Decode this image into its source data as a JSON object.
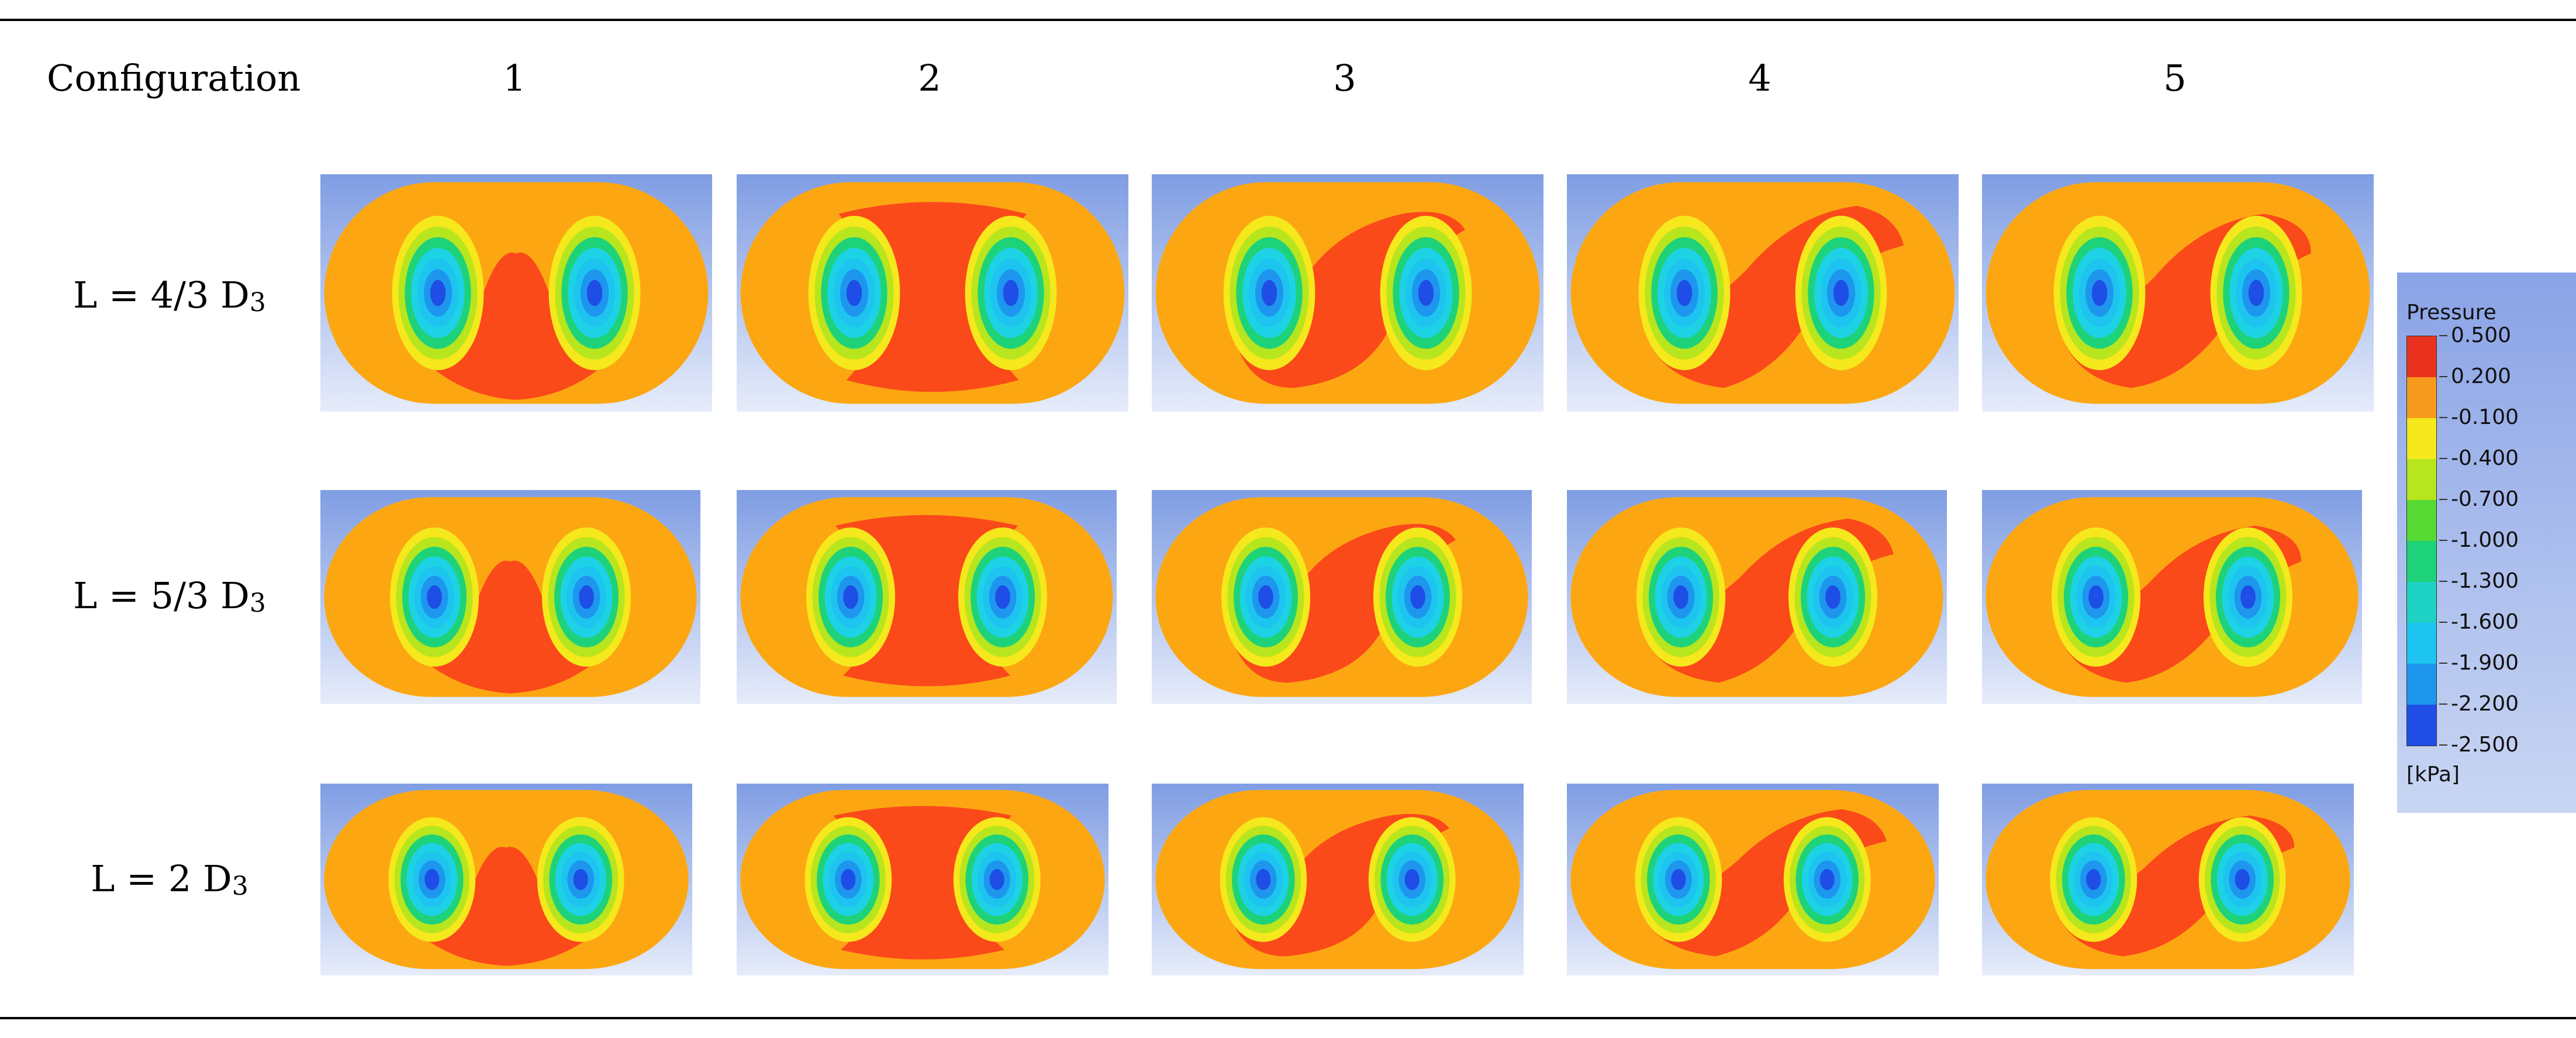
{
  "header": {
    "row_title": "Configuration",
    "columns": [
      "1",
      "2",
      "3",
      "4",
      "5"
    ]
  },
  "rows": [
    {
      "label": "L = 4/3 D",
      "sub": "3"
    },
    {
      "label": "L = 5/3 D",
      "sub": "3"
    },
    {
      "label": "L = 2 D",
      "sub": "3"
    }
  ],
  "legend": {
    "title": "Pressure",
    "unit": "[kPa]",
    "ticks": [
      "0.500",
      "0.200",
      "-0.100",
      "-0.400",
      "-0.700",
      "-1.000",
      "-1.300",
      "-1.600",
      "-1.900",
      "-2.200",
      "-2.500"
    ],
    "colors": [
      "#e8321e",
      "#f79b1e",
      "#f5e81c",
      "#b7e51e",
      "#56d932",
      "#1ed279",
      "#1ed2c4",
      "#1ec4f0",
      "#1e96ee",
      "#1e4ee6"
    ]
  },
  "colors": {
    "orange": "#fca712",
    "red": "#fa4a1a",
    "background_top": "#7f9de3",
    "background_bottom": "#e6ecfa"
  }
}
